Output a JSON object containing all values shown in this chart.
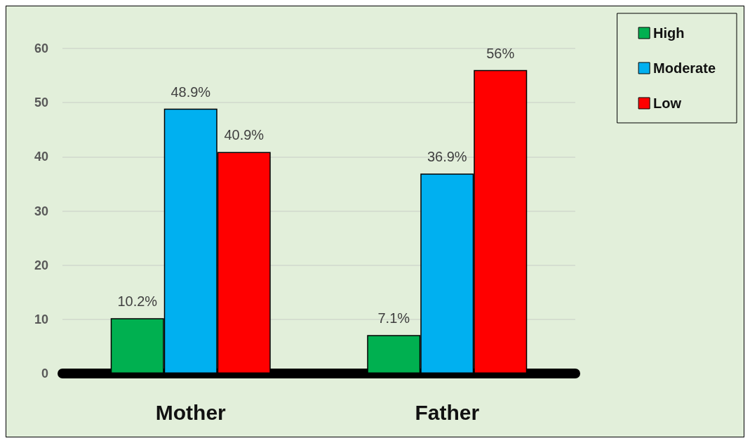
{
  "chart_data": {
    "type": "bar",
    "categories": [
      "Mother",
      "Father"
    ],
    "series": [
      {
        "name": "High",
        "color": "#00b050",
        "values": [
          10.2,
          7.1
        ],
        "value_labels": [
          "10.2%",
          "7.1%"
        ]
      },
      {
        "name": "Moderate",
        "color": "#00b0f0",
        "values": [
          48.9,
          36.9
        ],
        "value_labels": [
          "48.9%",
          "36.9%"
        ]
      },
      {
        "name": "Low",
        "color": "#ff0000",
        "values": [
          40.9,
          56
        ],
        "value_labels": [
          "40.9%",
          "56%"
        ]
      }
    ],
    "ylim": [
      0,
      60
    ],
    "yticks": [
      0,
      10,
      20,
      30,
      40,
      50,
      60
    ],
    "grid": "y",
    "legend": "top right"
  }
}
